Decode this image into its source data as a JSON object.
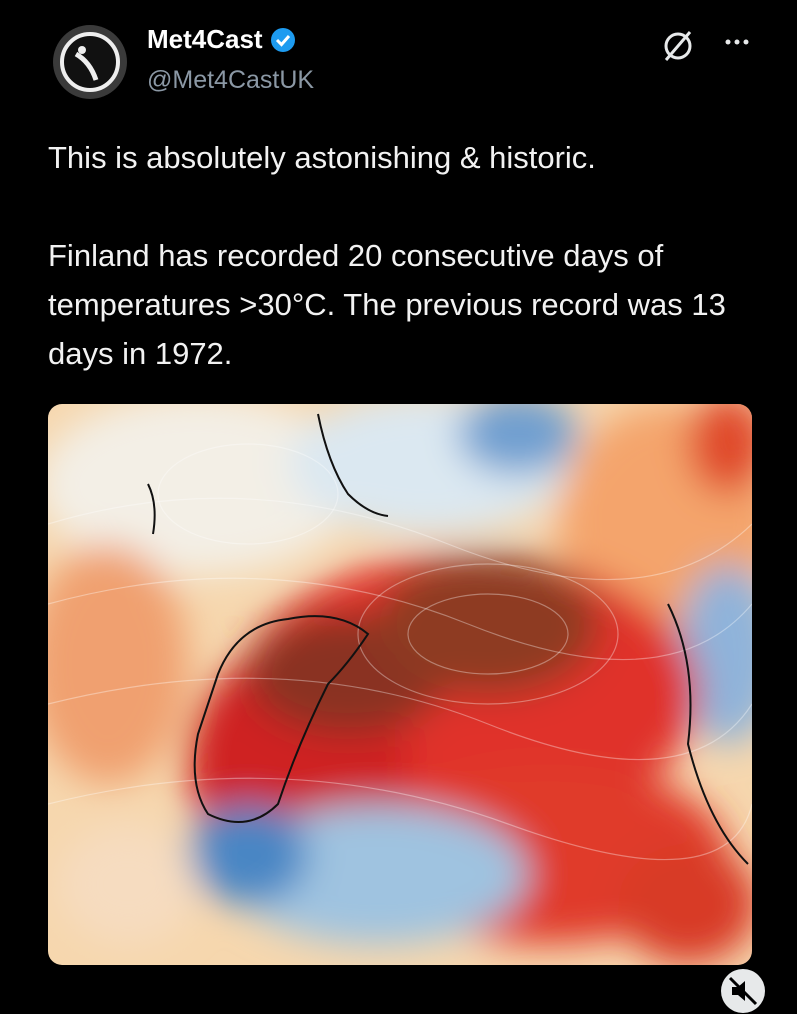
{
  "post": {
    "author": {
      "name": "Met4Cast",
      "handle": "@Met4CastUK"
    },
    "paragraphs": [
      "This is absolutely astonishing & historic.",
      "Finland has recorded 20 consecutive days of temperatures >30°C. The previous record was 13 days in 1972."
    ]
  }
}
